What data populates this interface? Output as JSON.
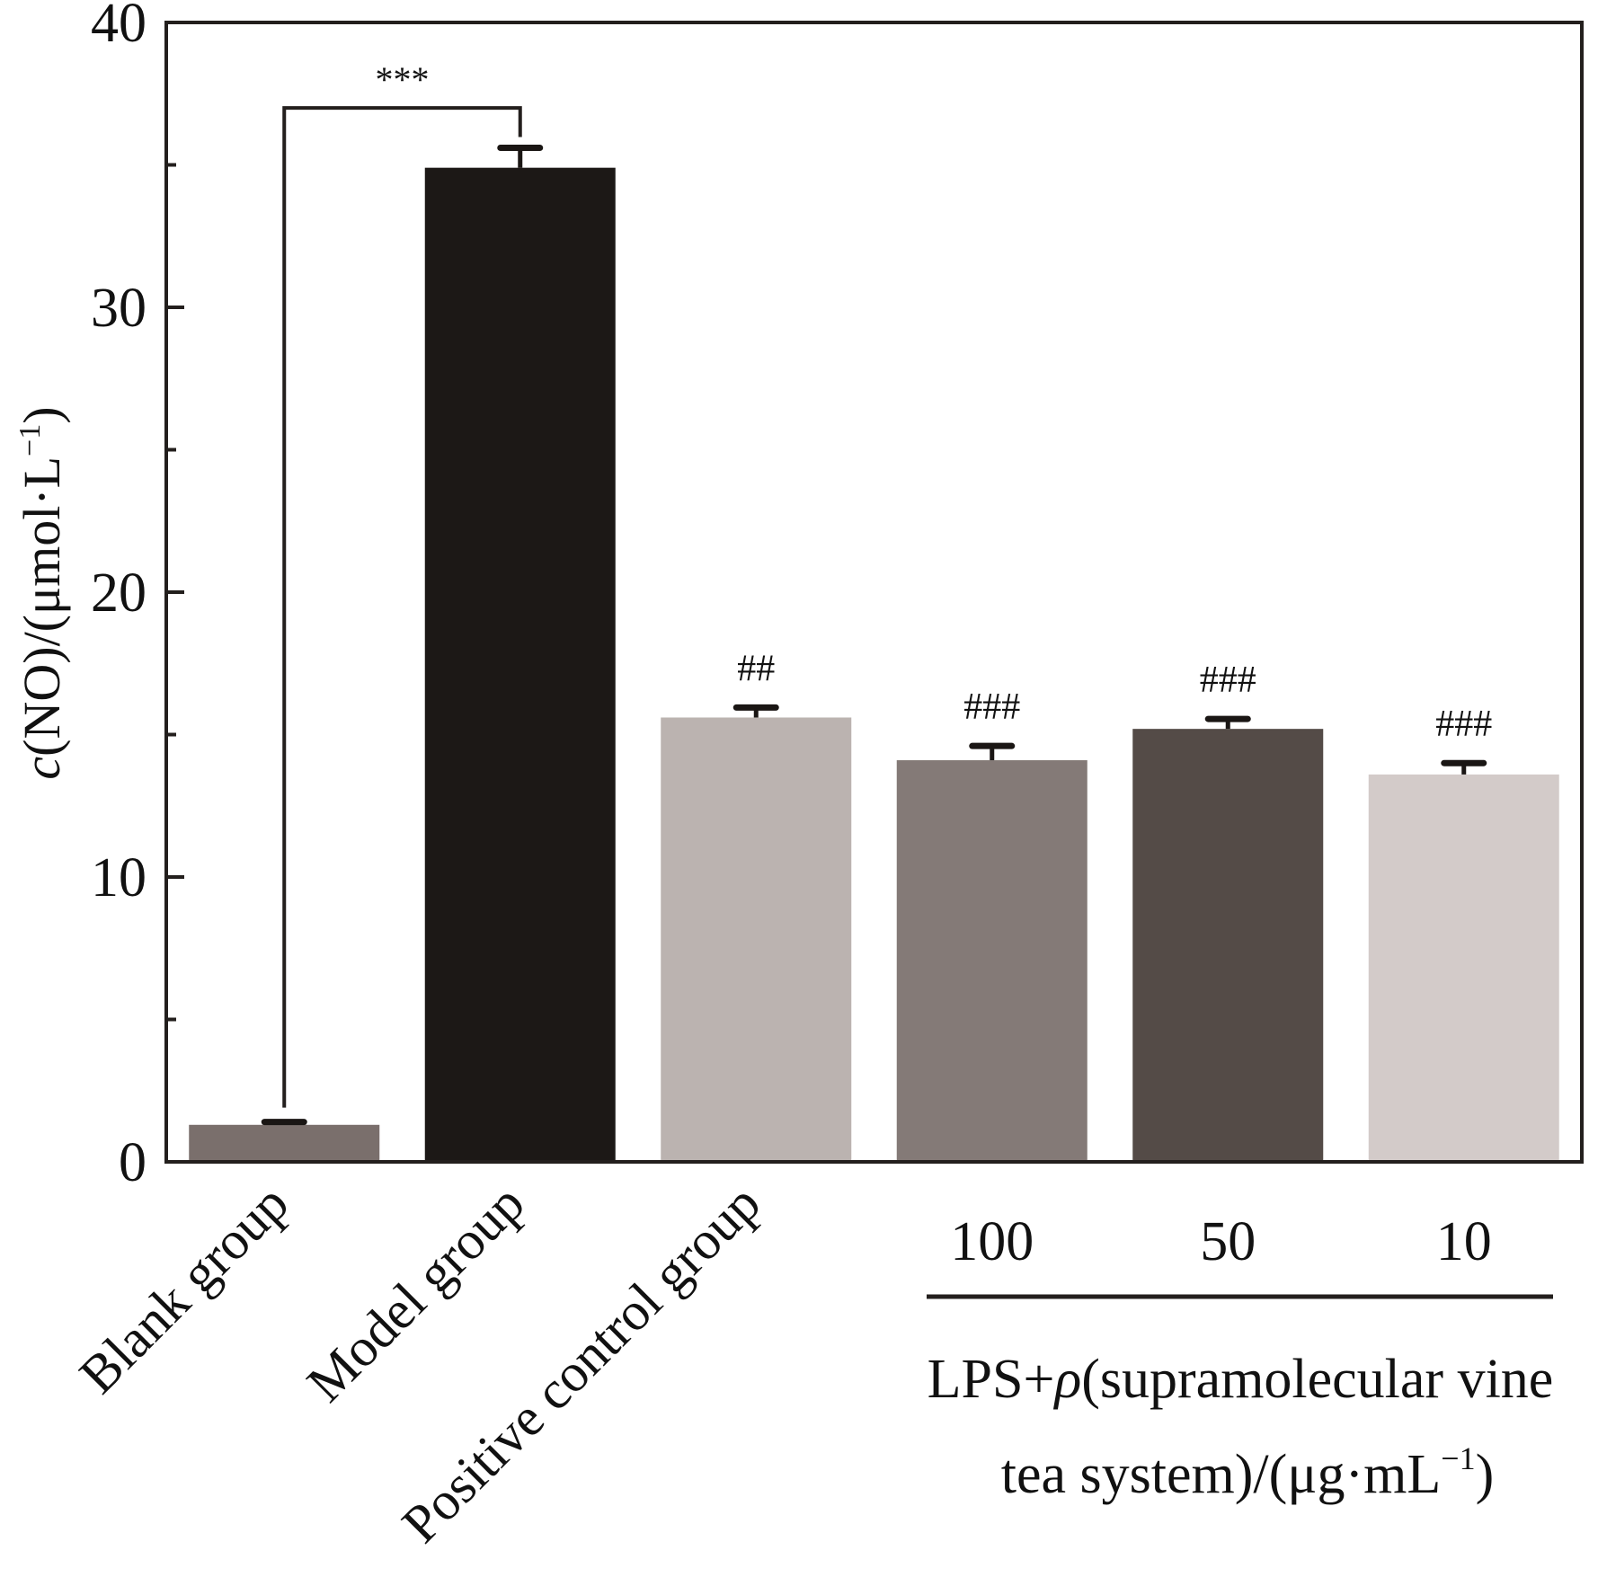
{
  "chart_data": {
    "type": "bar",
    "title": "",
    "ylabel": {
      "prefix": "c",
      "main": "(NO)/(μmol·L",
      "sup": "−1",
      "suffix": ")"
    },
    "ylim": [
      0,
      40
    ],
    "yticks": [
      0,
      10,
      20,
      30,
      40
    ],
    "ytick_labels": [
      "0",
      "10",
      "20",
      "30",
      "40"
    ],
    "minor_yticks": [
      5,
      15,
      25,
      35
    ],
    "grid": false,
    "categories": [
      "Blank group",
      "Model group",
      "Positive control group",
      "100",
      "50",
      "10"
    ],
    "values": [
      1.3,
      34.9,
      15.6,
      14.1,
      15.2,
      13.6
    ],
    "errors": [
      0.1,
      0.7,
      0.35,
      0.5,
      0.35,
      0.4
    ],
    "colors": [
      "#7a6f6c",
      "#1c1816",
      "#bbb3b0",
      "#847a77",
      "#544b47",
      "#d3cbc9"
    ],
    "significance": [
      "",
      "",
      "##",
      "###",
      "###",
      "###"
    ],
    "comparison_bracket": {
      "from": "Blank group",
      "to": "Model group",
      "label": "***",
      "level": 37.0
    },
    "group_label": {
      "line1_prefix": "LPS+",
      "line1_symbol": "ρ",
      "line1_rest": "(supramolecular vine",
      "line2_main": "tea system)/(μg·mL",
      "line2_sup": "−1",
      "line2_suffix": ")"
    },
    "legend": "none"
  }
}
